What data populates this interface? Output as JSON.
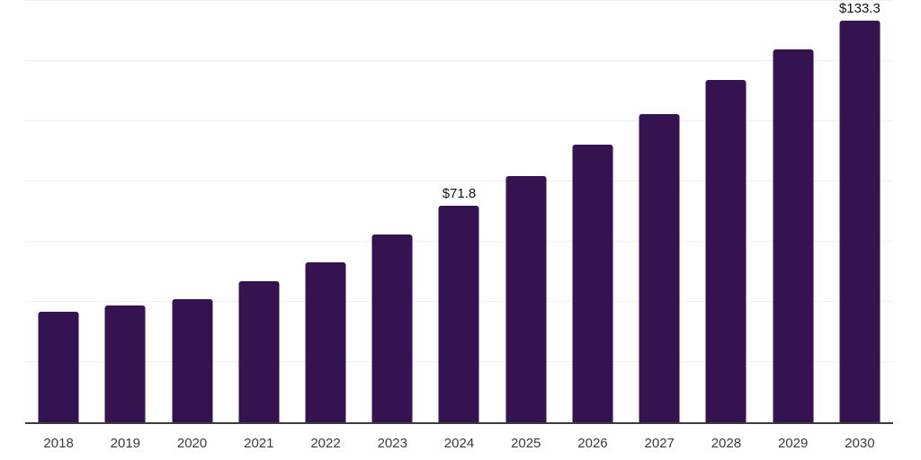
{
  "chart_data": {
    "type": "bar",
    "title": "",
    "xlabel": "",
    "ylabel": "",
    "categories": [
      "2018",
      "2019",
      "2020",
      "2021",
      "2022",
      "2023",
      "2024",
      "2025",
      "2026",
      "2027",
      "2028",
      "2029",
      "2030"
    ],
    "values": [
      36.7,
      38.8,
      40.8,
      47.0,
      53.0,
      62.4,
      71.8,
      81.8,
      92.1,
      102.4,
      113.7,
      123.8,
      133.3
    ],
    "value_labels": [
      "",
      "",
      "",
      "",
      "",
      "",
      "$71.8",
      "",
      "",
      "",
      "",
      "",
      "$133.3"
    ],
    "ylim": [
      0,
      140
    ],
    "ytick_step": 20,
    "grid": true,
    "y_tick_labels_visible": false,
    "legend": "none",
    "colors": {
      "bar": "#351250",
      "grid": "#f0f0f0",
      "axis": "#3c3c3c",
      "tick_label": "#3a3a3a",
      "value_label": "#111111",
      "background": "#ffffff"
    }
  }
}
